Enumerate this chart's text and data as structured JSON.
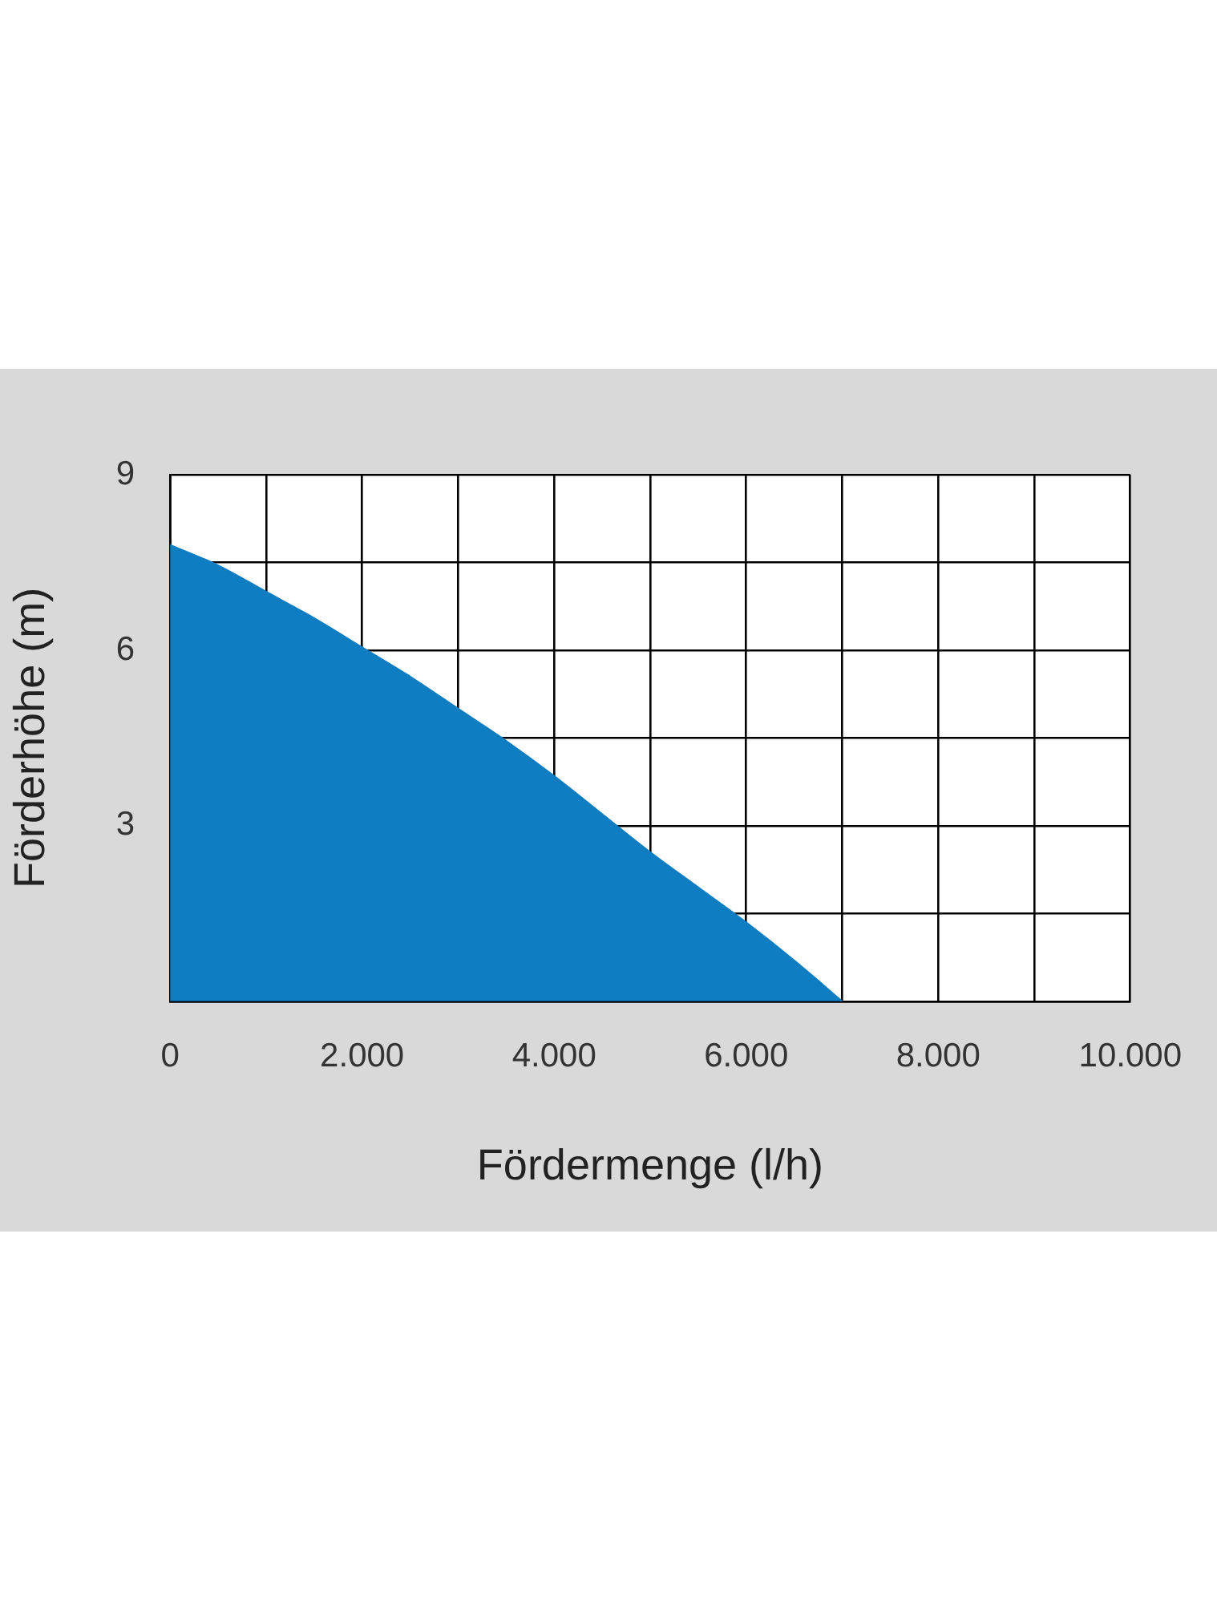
{
  "chart_data": {
    "type": "area",
    "xlabel": "Fördermenge (l/h)",
    "ylabel": "Förderhöhe (m)",
    "x": [
      0,
      500,
      1000,
      1500,
      2000,
      2500,
      3000,
      3500,
      4000,
      4500,
      5000,
      5500,
      6000,
      6500,
      7000
    ],
    "values": [
      7.8,
      7.45,
      7.0,
      6.55,
      6.05,
      5.55,
      5.0,
      4.45,
      3.85,
      3.2,
      2.55,
      1.95,
      1.35,
      0.7,
      0
    ],
    "color": "#0e7dc2",
    "xlim": [
      0,
      10000
    ],
    "ylim": [
      0,
      9
    ],
    "xticks": [
      {
        "value": 0,
        "label": "0"
      },
      {
        "value": 1000,
        "label": null
      },
      {
        "value": 2000,
        "label": "2.000"
      },
      {
        "value": 3000,
        "label": null
      },
      {
        "value": 4000,
        "label": "4.000"
      },
      {
        "value": 5000,
        "label": null
      },
      {
        "value": 6000,
        "label": "6.000"
      },
      {
        "value": 7000,
        "label": null
      },
      {
        "value": 8000,
        "label": "8.000"
      },
      {
        "value": 9000,
        "label": null
      },
      {
        "value": 10000,
        "label": "10.000"
      }
    ],
    "yticks": [
      {
        "value": 0,
        "label": null
      },
      {
        "value": 1.5,
        "label": null
      },
      3,
      {
        "value": 4.5,
        "label": null
      },
      6,
      {
        "value": 7.5,
        "label": null
      },
      9
    ],
    "grid": true
  }
}
